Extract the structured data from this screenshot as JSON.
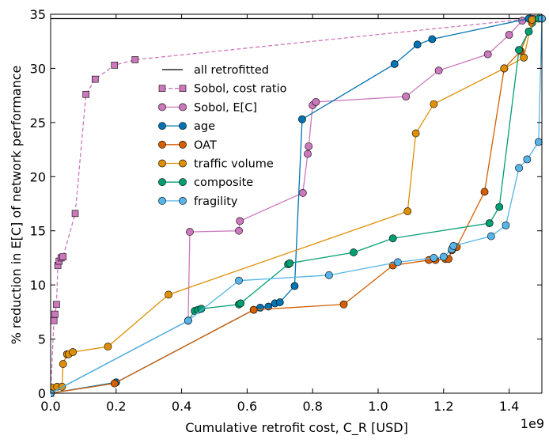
{
  "chart_data": {
    "type": "line",
    "title": "",
    "xlabel": "Cumulative retrofit cost, C_R [USD]",
    "ylabel": "% reduction in E[C] of network performance",
    "x_offset_text": "1e9",
    "x_scale": 1000000000,
    "xlim": [
      0,
      1.5
    ],
    "ylim": [
      0,
      35
    ],
    "x_ticks": [
      "0.0",
      "0.2",
      "0.4",
      "0.6",
      "0.8",
      "1.0",
      "1.2",
      "1.4"
    ],
    "x_tick_values": [
      0.0,
      0.2,
      0.4,
      0.6,
      0.8,
      1.0,
      1.2,
      1.4
    ],
    "y_ticks": [
      "0",
      "5",
      "10",
      "15",
      "20",
      "25",
      "30",
      "35"
    ],
    "y_tick_values": [
      0,
      5,
      10,
      15,
      20,
      25,
      30,
      35
    ],
    "grid": false,
    "legend_position": "upper-left-center",
    "series": [
      {
        "name": "all retrofitted",
        "color": "#000000",
        "style": "solid",
        "marker": "none",
        "points": [
          [
            0.0,
            34.6
          ],
          [
            1.5,
            34.6
          ]
        ]
      },
      {
        "name": "Sobol, cost ratio",
        "color": "#cc78bc",
        "style": "dashed",
        "marker": "square",
        "points": [
          [
            0.0,
            0.0
          ],
          [
            0.01,
            6.7
          ],
          [
            0.013,
            7.3
          ],
          [
            0.018,
            8.2
          ],
          [
            0.022,
            11.8
          ],
          [
            0.026,
            12.2
          ],
          [
            0.032,
            12.5
          ],
          [
            0.038,
            12.6
          ],
          [
            0.075,
            16.6
          ],
          [
            0.108,
            27.6
          ],
          [
            0.136,
            29.0
          ],
          [
            0.195,
            30.3
          ],
          [
            0.258,
            30.8
          ],
          [
            1.47,
            34.6
          ]
        ]
      },
      {
        "name": "Sobol, E[C]",
        "color": "#cc78bc",
        "style": "solid",
        "marker": "circle",
        "points": [
          [
            0.0,
            0.0
          ],
          [
            0.42,
            6.7
          ],
          [
            0.425,
            14.9
          ],
          [
            0.575,
            15.0
          ],
          [
            0.578,
            15.9
          ],
          [
            0.77,
            18.5
          ],
          [
            0.785,
            22.1
          ],
          [
            0.788,
            22.8
          ],
          [
            0.8,
            26.6
          ],
          [
            0.81,
            26.9
          ],
          [
            1.085,
            27.4
          ],
          [
            1.185,
            29.8
          ],
          [
            1.335,
            31.3
          ],
          [
            1.4,
            33.1
          ],
          [
            1.44,
            34.4
          ],
          [
            1.465,
            34.6
          ]
        ]
      },
      {
        "name": "age",
        "color": "#0173b2",
        "style": "solid",
        "marker": "circle",
        "points": [
          [
            0.0,
            0.0
          ],
          [
            0.2,
            1.0
          ],
          [
            0.62,
            7.7
          ],
          [
            0.64,
            7.9
          ],
          [
            0.665,
            8.0
          ],
          [
            0.685,
            8.3
          ],
          [
            0.7,
            8.4
          ],
          [
            0.745,
            9.9
          ],
          [
            0.768,
            25.3
          ],
          [
            1.05,
            30.4
          ],
          [
            1.12,
            32.2
          ],
          [
            1.165,
            32.7
          ],
          [
            1.46,
            34.6
          ]
        ]
      },
      {
        "name": "OAT",
        "color": "#d55e00",
        "style": "solid",
        "marker": "circle",
        "points": [
          [
            0.0,
            0.0
          ],
          [
            0.195,
            0.9
          ],
          [
            0.62,
            7.7
          ],
          [
            0.895,
            8.2
          ],
          [
            1.045,
            11.8
          ],
          [
            1.155,
            12.3
          ],
          [
            1.175,
            12.3
          ],
          [
            1.205,
            12.4
          ],
          [
            1.215,
            12.4
          ],
          [
            1.225,
            13.2
          ],
          [
            1.24,
            13.5
          ],
          [
            1.325,
            18.6
          ],
          [
            1.385,
            30.0
          ],
          [
            1.435,
            31.6
          ],
          [
            1.47,
            34.2
          ],
          [
            1.5,
            34.6
          ]
        ]
      },
      {
        "name": "traffic volume",
        "color": "#de8f05",
        "style": "solid",
        "marker": "circle",
        "points": [
          [
            0.0,
            0.0
          ],
          [
            0.005,
            0.5
          ],
          [
            0.02,
            0.6
          ],
          [
            0.035,
            0.6
          ],
          [
            0.038,
            2.7
          ],
          [
            0.05,
            3.6
          ],
          [
            0.055,
            3.6
          ],
          [
            0.068,
            3.8
          ],
          [
            0.175,
            4.3
          ],
          [
            0.36,
            9.1
          ],
          [
            1.09,
            16.8
          ],
          [
            1.115,
            24.0
          ],
          [
            1.17,
            26.7
          ],
          [
            1.385,
            30.0
          ],
          [
            1.445,
            31.0
          ],
          [
            1.47,
            34.5
          ],
          [
            1.5,
            34.6
          ]
        ]
      },
      {
        "name": "composite",
        "color": "#029e73",
        "style": "solid",
        "marker": "circle",
        "points": [
          [
            0.0,
            0.0
          ],
          [
            0.42,
            6.7
          ],
          [
            0.44,
            7.6
          ],
          [
            0.45,
            7.7
          ],
          [
            0.46,
            7.8
          ],
          [
            0.575,
            8.2
          ],
          [
            0.58,
            8.3
          ],
          [
            0.725,
            11.9
          ],
          [
            0.73,
            12.0
          ],
          [
            0.925,
            13.0
          ],
          [
            1.045,
            14.3
          ],
          [
            1.34,
            15.7
          ],
          [
            1.37,
            17.2
          ],
          [
            1.43,
            31.7
          ],
          [
            1.46,
            33.4
          ],
          [
            1.49,
            34.6
          ]
        ]
      },
      {
        "name": "fragility",
        "color": "#56b4e9",
        "style": "solid",
        "marker": "circle",
        "points": [
          [
            0.0,
            0.0
          ],
          [
            0.42,
            6.7
          ],
          [
            0.575,
            10.4
          ],
          [
            0.85,
            10.9
          ],
          [
            1.06,
            12.1
          ],
          [
            1.17,
            12.5
          ],
          [
            1.2,
            12.6
          ],
          [
            1.225,
            13.3
          ],
          [
            1.23,
            13.6
          ],
          [
            1.345,
            14.5
          ],
          [
            1.39,
            15.5
          ],
          [
            1.43,
            20.8
          ],
          [
            1.455,
            21.6
          ],
          [
            1.49,
            23.2
          ],
          [
            1.5,
            34.6
          ]
        ]
      }
    ]
  }
}
